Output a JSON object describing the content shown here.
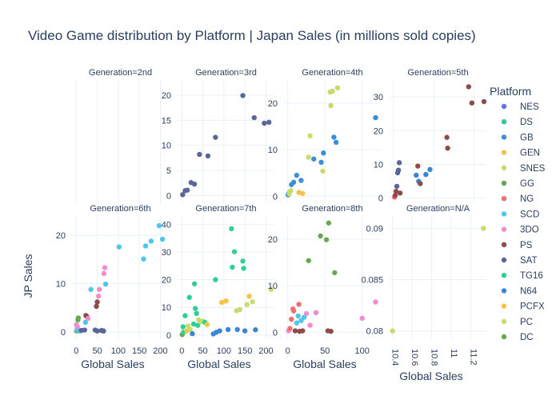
{
  "chart_data": {
    "type": "scatter",
    "title": "Video Game distribution by Platform | Japan Sales (in millions sold copies)",
    "xlabel": "Global Sales",
    "ylabel": "JP Sales",
    "legend_title": "Platform",
    "legend_position": "right",
    "grid": true,
    "colors": {
      "NES": "#636efa",
      "DS": "#2ec998",
      "GB": "#3b8fd9",
      "GEN": "#f2c14e",
      "SNES": "#c5dd6e",
      "GG": "#6aa84f",
      "NG": "#ef6f6f",
      "SCD": "#4fc6ec",
      "3DO": "#f08ccf",
      "PS": "#8f4a4a",
      "SAT": "#5b6598",
      "TG16": "#2fcf95",
      "N64": "#3a86d4",
      "PCFX": "#f7c245",
      "PC": "#c5dd6e",
      "DC": "#6aa84f"
    },
    "legend_items": [
      "NES",
      "DS",
      "GB",
      "GEN",
      "SNES",
      "GG",
      "NG",
      "SCD",
      "3DO",
      "PS",
      "SAT",
      "TG16",
      "N64",
      "PCFX",
      "PC",
      "DC"
    ],
    "panels": [
      {
        "title": "Generation=2nd",
        "xlim": [
          -10,
          220
        ],
        "ylim": [
          -1.5,
          23
        ],
        "points": []
      },
      {
        "title": "Generation=3rd",
        "xlim": [
          -10,
          220
        ],
        "ylim": [
          -1.5,
          23
        ],
        "yticks": [
          0,
          5,
          10,
          15,
          20
        ],
        "points": [
          {
            "x": 2,
            "y": 0.2,
            "p": "SAT"
          },
          {
            "x": 8,
            "y": 1.0,
            "p": "SAT"
          },
          {
            "x": 13,
            "y": 1.1,
            "p": "SAT"
          },
          {
            "x": 22,
            "y": 2.6,
            "p": "SAT"
          },
          {
            "x": 30,
            "y": 2.3,
            "p": "SAT"
          },
          {
            "x": 42,
            "y": 8.2,
            "p": "SAT"
          },
          {
            "x": 62,
            "y": 7.9,
            "p": "SAT"
          },
          {
            "x": 80,
            "y": 11.6,
            "p": "SAT"
          },
          {
            "x": 145,
            "y": 19.9,
            "p": "SAT"
          },
          {
            "x": 172,
            "y": 15.5,
            "p": "SAT"
          },
          {
            "x": 196,
            "y": 14.4,
            "p": "SAT"
          },
          {
            "x": 207,
            "y": 14.6,
            "p": "SAT"
          }
        ]
      },
      {
        "title": "Generation=4th",
        "xlim": [
          -5,
          125
        ],
        "ylim": [
          -1.5,
          25
        ],
        "yticks": [
          0,
          10,
          20
        ],
        "points": [
          {
            "x": 0.5,
            "y": 0.3,
            "p": "GB"
          },
          {
            "x": 1.5,
            "y": 0.6,
            "p": "GB"
          },
          {
            "x": 3,
            "y": 1.0,
            "p": "GEN"
          },
          {
            "x": 5,
            "y": 2.5,
            "p": "GB"
          },
          {
            "x": 8,
            "y": 3.0,
            "p": "GB"
          },
          {
            "x": 12,
            "y": 4.5,
            "p": "GB"
          },
          {
            "x": 15,
            "y": 0.8,
            "p": "GEN"
          },
          {
            "x": 20,
            "y": 0.6,
            "p": "GEN"
          },
          {
            "x": 18,
            "y": 3.4,
            "p": "GB"
          },
          {
            "x": 28,
            "y": 8.4,
            "p": "SNES"
          },
          {
            "x": 30,
            "y": 13.0,
            "p": "SNES"
          },
          {
            "x": 35,
            "y": 8.0,
            "p": "GB"
          },
          {
            "x": 45,
            "y": 7.3,
            "p": "GB"
          },
          {
            "x": 48,
            "y": 9.3,
            "p": "GB"
          },
          {
            "x": 47,
            "y": 5.4,
            "p": "SNES"
          },
          {
            "x": 57,
            "y": 22.4,
            "p": "SNES"
          },
          {
            "x": 60,
            "y": 22.6,
            "p": "SNES"
          },
          {
            "x": 58,
            "y": 19.5,
            "p": "SNES"
          },
          {
            "x": 67,
            "y": 23.3,
            "p": "SNES"
          },
          {
            "x": 62,
            "y": 12.7,
            "p": "GB"
          },
          {
            "x": 65,
            "y": 11.6,
            "p": "GB"
          },
          {
            "x": 118,
            "y": 16.9,
            "p": "GB"
          },
          {
            "x": 2,
            "y": 0.5,
            "p": "SNES"
          },
          {
            "x": 4,
            "y": 1.2,
            "p": "SNES"
          }
        ]
      },
      {
        "title": "Generation=5th",
        "xlim": [
          -5,
          115
        ],
        "ylim": [
          -1.5,
          35
        ],
        "yticks": [
          0,
          10,
          20,
          30
        ],
        "points": [
          {
            "x": 1,
            "y": 0.3,
            "p": "NG"
          },
          {
            "x": 2,
            "y": 0.8,
            "p": "PS"
          },
          {
            "x": 3,
            "y": 2.0,
            "p": "PS"
          },
          {
            "x": 4,
            "y": 3.5,
            "p": "SAT"
          },
          {
            "x": 5,
            "y": 7.5,
            "p": "SAT"
          },
          {
            "x": 6,
            "y": 8.3,
            "p": "SAT"
          },
          {
            "x": 7,
            "y": 10.5,
            "p": "SAT"
          },
          {
            "x": 30,
            "y": 9.5,
            "p": "PS"
          },
          {
            "x": 28,
            "y": 6.8,
            "p": "N64"
          },
          {
            "x": 31,
            "y": 5.0,
            "p": "N64"
          },
          {
            "x": 33,
            "y": 4.3,
            "p": "PS"
          },
          {
            "x": 40,
            "y": 7.0,
            "p": "N64"
          },
          {
            "x": 45,
            "y": 8.5,
            "p": "N64"
          },
          {
            "x": 66,
            "y": 18.0,
            "p": "PS"
          },
          {
            "x": 67,
            "y": 14.8,
            "p": "PS"
          },
          {
            "x": 93,
            "y": 33.0,
            "p": "PS"
          },
          {
            "x": 97,
            "y": 28.2,
            "p": "PS"
          },
          {
            "x": 112,
            "y": 28.6,
            "p": "PS"
          },
          {
            "x": 8,
            "y": 1.5,
            "p": "PS"
          }
        ]
      },
      {
        "title": "Generation=6th",
        "xlim": [
          -10,
          220
        ],
        "ylim": [
          -1.5,
          24
        ],
        "yticks": [
          0,
          10,
          20
        ],
        "points": [
          {
            "x": 1,
            "y": 0.2,
            "p": "GG"
          },
          {
            "x": 2,
            "y": 0.5,
            "p": "SCD"
          },
          {
            "x": 3,
            "y": 1.0,
            "p": "3DO"
          },
          {
            "x": 4,
            "y": 2.5,
            "p": "GG"
          },
          {
            "x": 5,
            "y": 2.9,
            "p": "GG"
          },
          {
            "x": 6,
            "y": 0.2,
            "p": "SCD"
          },
          {
            "x": 12,
            "y": 0.3,
            "p": "SAT"
          },
          {
            "x": 20,
            "y": 0.4,
            "p": "SAT"
          },
          {
            "x": 22,
            "y": 2.0,
            "p": "SCD"
          },
          {
            "x": 23,
            "y": 3.4,
            "p": "PS"
          },
          {
            "x": 25,
            "y": 3.2,
            "p": "PS"
          },
          {
            "x": 28,
            "y": 2.8,
            "p": "3DO"
          },
          {
            "x": 35,
            "y": 8.8,
            "p": "SCD"
          },
          {
            "x": 45,
            "y": 0.4,
            "p": "SAT"
          },
          {
            "x": 50,
            "y": 0.2,
            "p": "SAT"
          },
          {
            "x": 48,
            "y": 5.3,
            "p": "PS"
          },
          {
            "x": 53,
            "y": 7.4,
            "p": "3DO"
          },
          {
            "x": 55,
            "y": 8.8,
            "p": "3DO"
          },
          {
            "x": 60,
            "y": 0.3,
            "p": "SAT"
          },
          {
            "x": 65,
            "y": 0.2,
            "p": "SAT"
          },
          {
            "x": 66,
            "y": 12.1,
            "p": "3DO"
          },
          {
            "x": 68,
            "y": 13.3,
            "p": "3DO"
          },
          {
            "x": 70,
            "y": 9.9,
            "p": "SCD"
          },
          {
            "x": 102,
            "y": 17.6,
            "p": "SCD"
          },
          {
            "x": 160,
            "y": 15.1,
            "p": "SCD"
          },
          {
            "x": 165,
            "y": 17.8,
            "p": "SCD"
          },
          {
            "x": 178,
            "y": 18.8,
            "p": "SCD"
          },
          {
            "x": 197,
            "y": 22.0,
            "p": "SCD"
          },
          {
            "x": 205,
            "y": 19.2,
            "p": "SCD"
          },
          {
            "x": 0.5,
            "y": 1.5,
            "p": "3DO"
          },
          {
            "x": 50,
            "y": 6.2,
            "p": "PS"
          }
        ]
      },
      {
        "title": "Generation=7th",
        "xlim": [
          -10,
          220
        ],
        "ylim": [
          -1.5,
          43
        ],
        "yticks": [
          0,
          10,
          20,
          30,
          40
        ],
        "points": [
          {
            "x": 1,
            "y": 0.2,
            "p": "GG"
          },
          {
            "x": 3,
            "y": 3.0,
            "p": "TG16"
          },
          {
            "x": 4,
            "y": 1.0,
            "p": "TG16"
          },
          {
            "x": 8,
            "y": 7.0,
            "p": "TG16"
          },
          {
            "x": 12,
            "y": 1.5,
            "p": "PCFX"
          },
          {
            "x": 15,
            "y": 3.3,
            "p": "PC"
          },
          {
            "x": 18,
            "y": 13.6,
            "p": "TG16"
          },
          {
            "x": 20,
            "y": 2.0,
            "p": "PC"
          },
          {
            "x": 25,
            "y": 0.5,
            "p": "N64"
          },
          {
            "x": 28,
            "y": 4.0,
            "p": "TG16"
          },
          {
            "x": 30,
            "y": 18.5,
            "p": "TG16"
          },
          {
            "x": 32,
            "y": 9.6,
            "p": "TG16"
          },
          {
            "x": 35,
            "y": 7.8,
            "p": "TG16"
          },
          {
            "x": 38,
            "y": 3.5,
            "p": "TG16"
          },
          {
            "x": 40,
            "y": 5.5,
            "p": "PC"
          },
          {
            "x": 45,
            "y": 4.8,
            "p": "PC"
          },
          {
            "x": 50,
            "y": 5.0,
            "p": "PC"
          },
          {
            "x": 55,
            "y": 4.6,
            "p": "TG16"
          },
          {
            "x": 60,
            "y": 3.8,
            "p": "PCFX"
          },
          {
            "x": 75,
            "y": 0.4,
            "p": "N64"
          },
          {
            "x": 80,
            "y": 20.0,
            "p": "TG16"
          },
          {
            "x": 82,
            "y": 1.0,
            "p": "N64"
          },
          {
            "x": 90,
            "y": 1.5,
            "p": "N64"
          },
          {
            "x": 95,
            "y": 11.8,
            "p": "PCFX"
          },
          {
            "x": 105,
            "y": 12.3,
            "p": "PCFX"
          },
          {
            "x": 110,
            "y": 2.0,
            "p": "N64"
          },
          {
            "x": 118,
            "y": 38.4,
            "p": "TG16"
          },
          {
            "x": 120,
            "y": 24.5,
            "p": "TG16"
          },
          {
            "x": 125,
            "y": 30.1,
            "p": "TG16"
          },
          {
            "x": 130,
            "y": 8.8,
            "p": "PC"
          },
          {
            "x": 132,
            "y": 2.0,
            "p": "N64"
          },
          {
            "x": 138,
            "y": 9.2,
            "p": "PC"
          },
          {
            "x": 145,
            "y": 26.7,
            "p": "TG16"
          },
          {
            "x": 147,
            "y": 24.1,
            "p": "TG16"
          },
          {
            "x": 150,
            "y": 1.5,
            "p": "N64"
          },
          {
            "x": 155,
            "y": 11.0,
            "p": "PC"
          },
          {
            "x": 160,
            "y": 14.0,
            "p": "PCFX"
          },
          {
            "x": 168,
            "y": 12.0,
            "p": "PC"
          },
          {
            "x": 175,
            "y": 1.9,
            "p": "N64"
          },
          {
            "x": 212,
            "y": 16.5,
            "p": "PC"
          }
        ]
      },
      {
        "title": "Generation=8th",
        "xlim": [
          -5,
          125
        ],
        "ylim": [
          -1.5,
          25
        ],
        "yticks": [
          0,
          10,
          20
        ],
        "points": [
          {
            "x": 1,
            "y": 0.3,
            "p": "3DO"
          },
          {
            "x": 3,
            "y": 0.8,
            "p": "NG"
          },
          {
            "x": 5,
            "y": 2.8,
            "p": "NG"
          },
          {
            "x": 7,
            "y": 5.0,
            "p": "NG"
          },
          {
            "x": 8,
            "y": 4.6,
            "p": "NG"
          },
          {
            "x": 10,
            "y": 0.3,
            "p": "PS"
          },
          {
            "x": 12,
            "y": 2.0,
            "p": "SCD"
          },
          {
            "x": 14,
            "y": 3.5,
            "p": "SCD"
          },
          {
            "x": 15,
            "y": 6.0,
            "p": "NG"
          },
          {
            "x": 16,
            "y": 0.2,
            "p": "PS"
          },
          {
            "x": 18,
            "y": 2.5,
            "p": "SCD"
          },
          {
            "x": 20,
            "y": 0.3,
            "p": "PS"
          },
          {
            "x": 22,
            "y": 3.2,
            "p": "SCD"
          },
          {
            "x": 25,
            "y": 4.0,
            "p": "3DO"
          },
          {
            "x": 28,
            "y": 15.4,
            "p": "GG"
          },
          {
            "x": 30,
            "y": 1.5,
            "p": "3DO"
          },
          {
            "x": 38,
            "y": 4.2,
            "p": "3DO"
          },
          {
            "x": 44,
            "y": 20.7,
            "p": "GG"
          },
          {
            "x": 52,
            "y": 19.9,
            "p": "GG"
          },
          {
            "x": 55,
            "y": 23.5,
            "p": "GG"
          },
          {
            "x": 54,
            "y": 0.3,
            "p": "PS"
          },
          {
            "x": 58,
            "y": 0.2,
            "p": "PS"
          },
          {
            "x": 63,
            "y": 12.8,
            "p": "GG"
          },
          {
            "x": 100,
            "y": 3.0,
            "p": "3DO"
          },
          {
            "x": 118,
            "y": 6.5,
            "p": "3DO"
          }
        ]
      },
      {
        "title": "Generation=N/A",
        "xlim": [
          10.37,
          11.36
        ],
        "ylim": [
          0.0792,
          0.0912
        ],
        "yticks": [
          0.08,
          0.085,
          0.09
        ],
        "xticks": [
          10.4,
          10.6,
          10.8,
          11,
          11.2
        ],
        "points": [
          {
            "x": 10.4,
            "y": 0.08,
            "p": "SNES"
          },
          {
            "x": 11.33,
            "y": 0.09,
            "p": "SNES"
          }
        ]
      }
    ],
    "shared_xticks": [
      0,
      50,
      100,
      150,
      200
    ],
    "shared_xticks_b": [
      0,
      50,
      100
    ]
  }
}
